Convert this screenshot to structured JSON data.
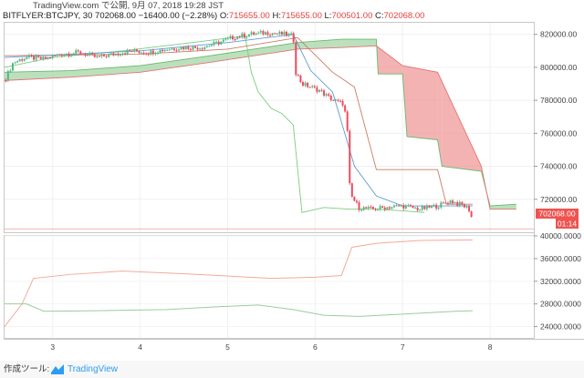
{
  "header": {
    "line1": "TradingView.com で公開, 9月 07, 2018 19:28 JST",
    "symbol": "BITFLYER:BTCJPY, 30",
    "last": "702068.00",
    "change": "−16400.00 (−2.28%)",
    "o_label": "O:",
    "o_val": "715655.00",
    "h_label": "H:",
    "h_val": "715655.00",
    "l_label": "L:",
    "l_val": "700501.00",
    "c_label": "C:",
    "c_val": "702068.00"
  },
  "footer": {
    "made_with": "作成ツール:",
    "brand": "TradingView"
  },
  "colors": {
    "bull": "#53b987",
    "bear": "#eb4d5c",
    "cloud_up": "#a5d6a7",
    "cloud_down": "#ef9a9a",
    "price_tag": "#ef5350"
  },
  "chart_data": [
    {
      "type": "candlestick",
      "title": "BITFLYER:BTCJPY, 30",
      "x_ticks": [
        "3",
        "4",
        "5",
        "6",
        "7",
        "8"
      ],
      "y_ticks": [
        "820000.00",
        "800000.00",
        "780000.00",
        "760000.00",
        "740000.00",
        "720000.00"
      ],
      "ylim": [
        700000,
        827000
      ],
      "xlim": [
        2.45,
        8.5
      ],
      "last_price_label": "702068.00",
      "countdown_label": "01:14",
      "last_price": 702068,
      "price_path": [
        [
          2.45,
          792000
        ],
        [
          2.55,
          803000
        ],
        [
          2.7,
          806000
        ],
        [
          2.9,
          805000
        ],
        [
          3.1,
          808000
        ],
        [
          3.3,
          809000
        ],
        [
          3.5,
          806000
        ],
        [
          3.7,
          808000
        ],
        [
          3.9,
          810000
        ],
        [
          4.1,
          809000
        ],
        [
          4.3,
          811000
        ],
        [
          4.5,
          812000
        ],
        [
          4.7,
          812000
        ],
        [
          4.9,
          815000
        ],
        [
          5.05,
          818000
        ],
        [
          5.25,
          820000
        ],
        [
          5.45,
          821000
        ],
        [
          5.65,
          820000
        ],
        [
          5.75,
          819000
        ],
        [
          5.78,
          797000
        ],
        [
          5.85,
          790000
        ],
        [
          5.95,
          788000
        ],
        [
          6.05,
          786000
        ],
        [
          6.15,
          782000
        ],
        [
          6.25,
          779000
        ],
        [
          6.33,
          778000
        ],
        [
          6.37,
          760000
        ],
        [
          6.4,
          723000
        ],
        [
          6.5,
          715000
        ],
        [
          6.65,
          714000
        ],
        [
          6.8,
          715000
        ],
        [
          7.0,
          716000
        ],
        [
          7.2,
          714000
        ],
        [
          7.4,
          716000
        ],
        [
          7.55,
          719000
        ],
        [
          7.7,
          716000
        ],
        [
          7.78,
          713000
        ],
        [
          7.8,
          702068
        ]
      ],
      "ichimoku_span_a": [
        [
          2.45,
          797000
        ],
        [
          3.2,
          798000
        ],
        [
          4.0,
          801000
        ],
        [
          4.8,
          807000
        ],
        [
          5.3,
          811000
        ],
        [
          5.8,
          815000
        ],
        [
          6.3,
          817000
        ],
        [
          6.7,
          817000
        ],
        [
          6.72,
          796000
        ],
        [
          7.0,
          796000
        ],
        [
          7.05,
          758000
        ],
        [
          7.4,
          756000
        ],
        [
          7.45,
          740000
        ],
        [
          7.9,
          737000
        ],
        [
          8.0,
          716000
        ],
        [
          8.3,
          717000
        ]
      ],
      "ichimoku_span_b": [
        [
          2.45,
          792000
        ],
        [
          3.2,
          794000
        ],
        [
          4.0,
          797000
        ],
        [
          4.8,
          803000
        ],
        [
          5.3,
          807000
        ],
        [
          5.8,
          811000
        ],
        [
          6.3,
          812000
        ],
        [
          6.7,
          813000
        ],
        [
          7.0,
          801000
        ],
        [
          7.4,
          797000
        ],
        [
          7.9,
          740000
        ],
        [
          8.0,
          714000
        ],
        [
          8.3,
          714000
        ]
      ],
      "ichimoku_lagging": [
        [
          2.45,
          800000
        ],
        [
          3.0,
          806000
        ],
        [
          3.8,
          810000
        ],
        [
          4.6,
          815000
        ],
        [
          5.2,
          819000
        ],
        [
          5.27,
          797000
        ],
        [
          5.35,
          785000
        ],
        [
          5.5,
          775000
        ],
        [
          5.62,
          772000
        ],
        [
          5.75,
          765000
        ],
        [
          5.85,
          712000
        ],
        [
          6.1,
          715000
        ],
        [
          6.4,
          714000
        ],
        [
          6.7,
          714000
        ],
        [
          7.0,
          713000
        ],
        [
          7.25,
          712000
        ]
      ],
      "ichimoku_base": [
        [
          2.45,
          807000
        ],
        [
          4.0,
          808000
        ],
        [
          5.0,
          811000
        ],
        [
          5.8,
          818000
        ],
        [
          6.2,
          797000
        ],
        [
          6.45,
          788000
        ],
        [
          6.7,
          738000
        ],
        [
          7.4,
          738000
        ],
        [
          7.5,
          717000
        ],
        [
          7.8,
          717000
        ]
      ],
      "ichimoku_conversion": [
        [
          2.45,
          806000
        ],
        [
          4.0,
          810000
        ],
        [
          5.0,
          815000
        ],
        [
          5.75,
          820000
        ],
        [
          5.95,
          798000
        ],
        [
          6.2,
          785000
        ],
        [
          6.45,
          740000
        ],
        [
          6.7,
          722000
        ],
        [
          7.0,
          716000
        ],
        [
          7.8,
          716000
        ]
      ]
    },
    {
      "type": "line",
      "y_ticks": [
        "40000.0000",
        "36000.0000",
        "32000.0000",
        "28000.0000",
        "24000.0000"
      ],
      "ylim": [
        22000,
        40000
      ],
      "series": [
        {
          "color": "#f4a99b",
          "points": [
            [
              2.45,
              24000
            ],
            [
              2.65,
              28000
            ],
            [
              2.78,
              32500
            ],
            [
              3.2,
              33200
            ],
            [
              3.8,
              33800
            ],
            [
              4.4,
              33400
            ],
            [
              4.9,
              33000
            ],
            [
              5.5,
              32500
            ],
            [
              6.0,
              32700
            ],
            [
              6.3,
              33000
            ],
            [
              6.42,
              38000
            ],
            [
              6.7,
              38700
            ],
            [
              7.2,
              39200
            ],
            [
              7.8,
              39300
            ]
          ]
        },
        {
          "color": "#9ccc9c",
          "points": [
            [
              2.45,
              28000
            ],
            [
              2.7,
              28000
            ],
            [
              2.9,
              26700
            ],
            [
              3.5,
              26800
            ],
            [
              4.3,
              27000
            ],
            [
              4.9,
              27500
            ],
            [
              5.35,
              27800
            ],
            [
              5.75,
              27000
            ],
            [
              6.1,
              26000
            ],
            [
              6.5,
              25800
            ],
            [
              7.0,
              26200
            ],
            [
              7.6,
              26700
            ],
            [
              7.8,
              26800
            ]
          ]
        }
      ]
    }
  ]
}
